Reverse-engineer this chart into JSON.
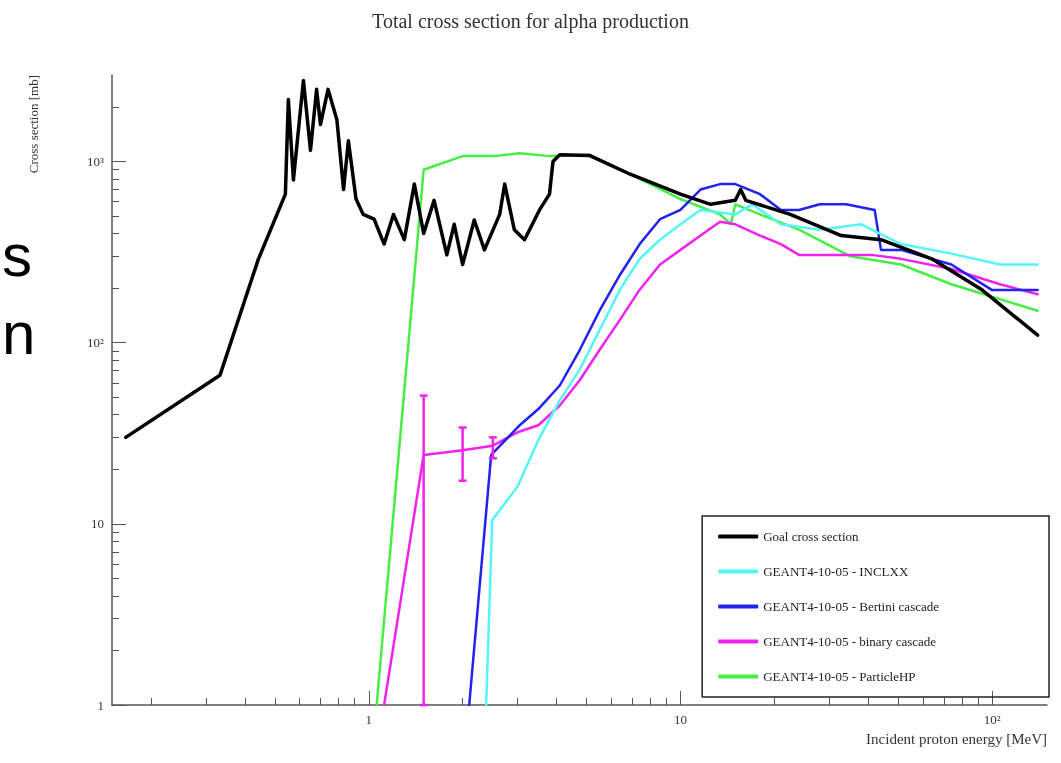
{
  "chart_data": {
    "type": "line",
    "title": "Total cross section for alpha production",
    "xlabel": "Incident proton energy [MeV]",
    "ylabel": "Cross section [mb]",
    "log": "xy",
    "grid": false,
    "legend": "bottom right",
    "xlim": [
      0.15,
      150
    ],
    "xticks": [
      1,
      10,
      {
        "value": 100,
        "label": "10²"
      }
    ],
    "ylim": [
      1,
      3000
    ],
    "yticks": [
      1,
      10,
      {
        "value": 100,
        "label": "10²"
      },
      {
        "value": 1000,
        "label": "10³"
      }
    ],
    "annotations": [
      "s",
      "n"
    ],
    "series": [
      {
        "name": "Goal cross section",
        "color": "#000000",
        "x": [
          0.166,
          0.333,
          0.442,
          0.54,
          0.552,
          0.573,
          0.617,
          0.65,
          0.68,
          0.7,
          0.74,
          0.79,
          0.83,
          0.86,
          0.91,
          0.96,
          1.04,
          1.12,
          1.2,
          1.3,
          1.4,
          1.5,
          1.62,
          1.78,
          1.88,
          2.0,
          2.18,
          2.35,
          2.63,
          2.73,
          2.93,
          3.16,
          3.53,
          3.8,
          3.9,
          4.1,
          5.1,
          6.9,
          10,
          12.5,
          15,
          15.6,
          16.2,
          22.5,
          32.8,
          44,
          64,
          93,
          140
        ],
        "values": [
          30,
          66,
          288,
          660,
          2200,
          790,
          2800,
          1150,
          2500,
          1600,
          2500,
          1700,
          700,
          1300,
          620,
          510,
          480,
          350,
          510,
          370,
          750,
          400,
          610,
          305,
          450,
          270,
          475,
          325,
          510,
          750,
          420,
          370,
          540,
          660,
          1000,
          1090,
          1080,
          850,
          660,
          580,
          610,
          700,
          610,
          510,
          390,
          370,
          290,
          195,
          110
        ]
      },
      {
        "name": "GEANT4-10-05 - INCLXX",
        "color": "#55f5f5",
        "x": [
          2.38,
          2.49,
          3.0,
          3.5,
          4.1,
          4.75,
          5.5,
          6.4,
          7.4,
          8.6,
          10,
          11.6,
          15,
          17,
          21,
          28,
          38,
          51,
          74,
          106,
          140
        ],
        "values": [
          1,
          10.5,
          16,
          29,
          48,
          71,
          117,
          196,
          290,
          370,
          450,
          540,
          510,
          580,
          450,
          420,
          450,
          350,
          310,
          270,
          270
        ]
      },
      {
        "name": "GEANT4-10-05 - Bertini cascade",
        "color": "#2222ee",
        "x": [
          2.1,
          2.47,
          3.05,
          3.5,
          4.1,
          4.75,
          5.5,
          6.4,
          7.4,
          8.6,
          10,
          11.6,
          13.4,
          15,
          18,
          21,
          24,
          28,
          34,
          42,
          44,
          51,
          74,
          100,
          140
        ],
        "values": [
          1,
          24,
          35,
          43,
          58,
          91,
          150,
          237,
          350,
          480,
          540,
          700,
          750,
          750,
          660,
          540,
          540,
          580,
          580,
          540,
          325,
          325,
          270,
          195,
          195
        ]
      },
      {
        "name": "GEANT4-10-05 - binary cascade",
        "color": "#f022f0",
        "x": [
          1.12,
          1.5,
          2.0,
          2.5,
          3.0,
          3.5,
          4.1,
          4.75,
          5.5,
          6.4,
          7.4,
          8.6,
          10,
          11.6,
          13.4,
          15,
          18,
          21,
          24,
          30,
          41,
          51,
          74,
          106,
          140
        ],
        "values": [
          1,
          24,
          25.5,
          27,
          32,
          35,
          45,
          62,
          91,
          134,
          196,
          270,
          325,
          390,
          465,
          450,
          390,
          350,
          305,
          305,
          305,
          290,
          255,
          210,
          185
        ],
        "errors": [
          null,
          [
            1,
            51
          ],
          [
            17.3,
            34
          ],
          [
            23,
            30
          ],
          null,
          null,
          null,
          null,
          null,
          null,
          null,
          null,
          null,
          null,
          null,
          null,
          null,
          null,
          null,
          null,
          null,
          null,
          null,
          null,
          null
        ]
      },
      {
        "name": "GEANT4-10-05 - ParticleHP",
        "color": "#44ee44",
        "x": [
          1.06,
          1.5,
          2.0,
          2.53,
          3.05,
          3.8,
          5.1,
          6.9,
          10,
          13.4,
          14.5,
          15,
          18,
          24,
          35,
          51,
          74,
          140
        ],
        "values": [
          1,
          900,
          1070,
          1070,
          1110,
          1070,
          1090,
          850,
          620,
          510,
          450,
          580,
          510,
          420,
          300,
          270,
          210,
          150
        ]
      }
    ]
  }
}
